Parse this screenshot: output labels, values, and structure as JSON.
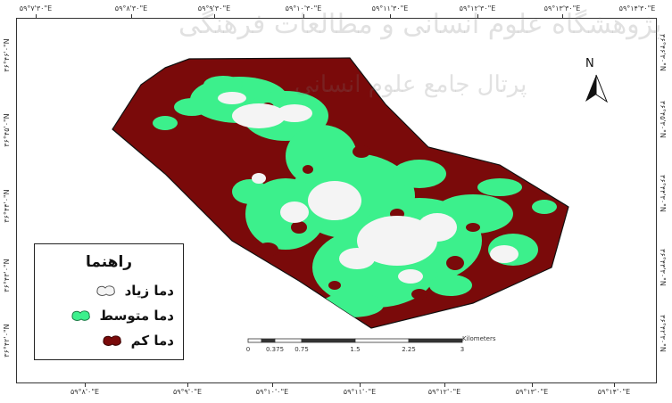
{
  "legend": {
    "title": "راهنما",
    "items": [
      {
        "label": "دما زیاد",
        "color": "#f4f4f4",
        "swatch": "white-blob"
      },
      {
        "label": "دما متوسط",
        "color": "#3cf08c",
        "swatch": "green-blob"
      },
      {
        "label": "دما کم",
        "color": "#7a0a0a",
        "swatch": "darkred-blob"
      }
    ]
  },
  "north_arrow": {
    "letter": "N"
  },
  "scale_bar": {
    "unit": "Kilometers",
    "labels": [
      "0",
      "0.375",
      "0.75",
      "1.5",
      "2.25",
      "3"
    ]
  },
  "coordinates": {
    "top": [
      "۵۹°۷'۳۰\"E",
      "۵۹°۸'۳۰\"E",
      "۵۹°۹'۳۰\"E",
      "۵۹°۱۰'۳۰\"E",
      "۵۹°۱۱'۳۰\"E",
      "۵۹°۱۲'۳۰\"E",
      "۵۹°۱۳'۳۰\"E",
      "۵۹°۱۴'۳۰\"E"
    ],
    "bottom": [
      "۵۹°۸'۰\"E",
      "۵۹°۹'۰\"E",
      "۵۹°۱۰'۰\"E",
      "۵۹°۱۱'۰\"E",
      "۵۹°۱۲'۰\"E",
      "۵۹°۱۳'۰\"E",
      "۵۹°۱۴'۰\"E"
    ],
    "left": [
      "۳۶°۴۶'۰\"N",
      "۳۶°۴۵'۰\"N",
      "۳۶°۴۴'۰\"N",
      "۳۶°۴۳'۰\"N",
      "۳۶°۴۲'۰\"N"
    ],
    "right": [
      "۳۶°۴۶'۳۰\"N",
      "۳۶°۴۵'۳۰\"N",
      "۳۶°۴۴'۳۰\"N",
      "۳۶°۴۳'۳۰\"N",
      "۳۶°۴۲'۳۰\"N"
    ]
  },
  "colors": {
    "low_temp": "#7a0a0a",
    "medium_temp": "#3cf08c",
    "high_temp": "#f4f4f4",
    "outline": "#111111"
  }
}
